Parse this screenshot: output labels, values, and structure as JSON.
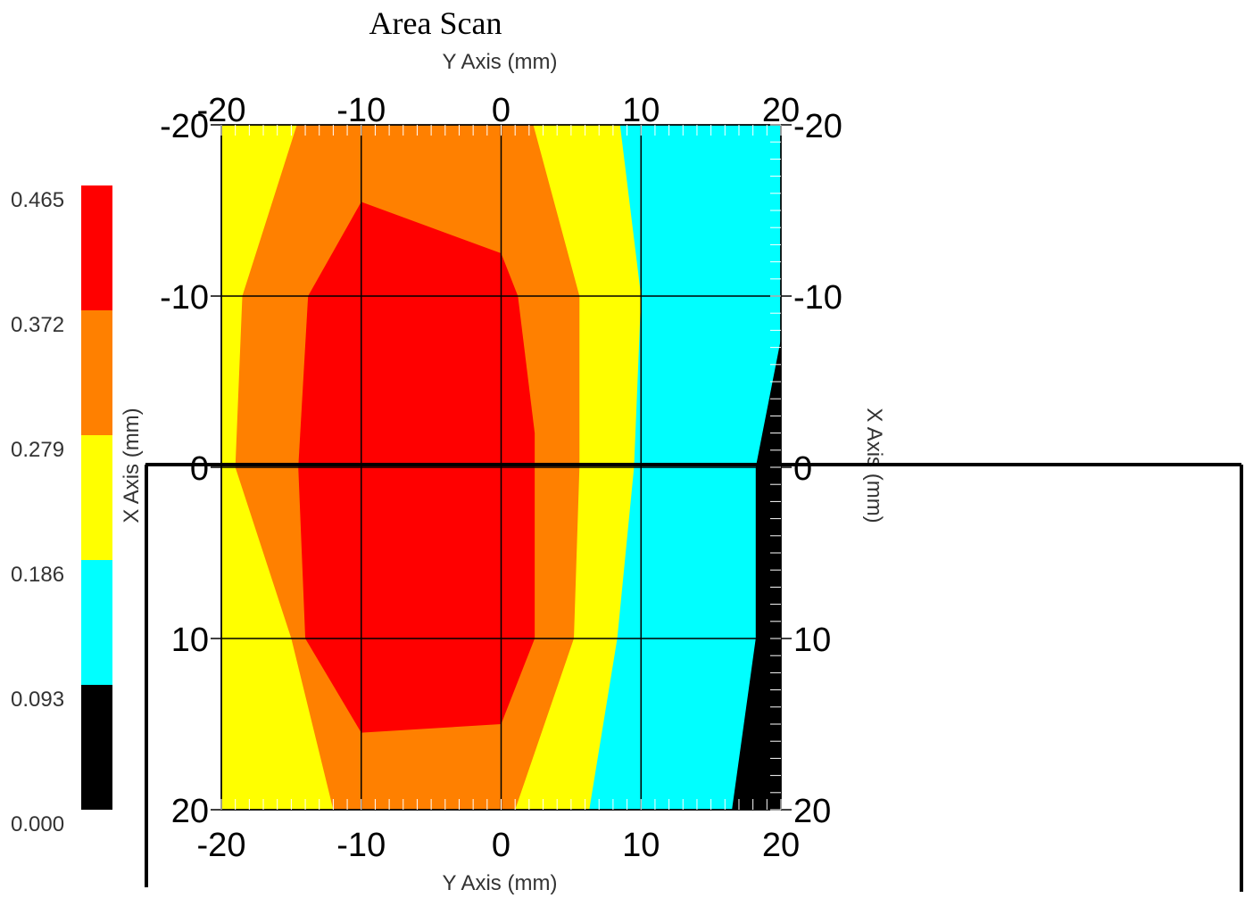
{
  "chart_data": {
    "type": "heatmap",
    "title": "Area Scan",
    "xlabel": "Y Axis (mm)",
    "ylabel": "X Axis (mm)",
    "x_range": [
      -20,
      20
    ],
    "y_range": [
      -20,
      20
    ],
    "x_ticks": [
      "-20",
      "-10",
      "0",
      "10",
      "20"
    ],
    "y_ticks": [
      "-20",
      "-10",
      "0",
      "10",
      "20"
    ],
    "grid": true,
    "legend_placement": "left",
    "legend": {
      "levels": [
        "0.465",
        "0.372",
        "0.279",
        "0.186",
        "0.093",
        "0.000"
      ],
      "colors": [
        "#ff0000",
        "#ff8000",
        "#ffff00",
        "#00ffff",
        "#000000"
      ]
    },
    "regions": [
      {
        "level": "0.372-0.465",
        "color": "#ff0000",
        "points": [
          [
            -10,
            -15.5
          ],
          [
            0,
            -12.5
          ],
          [
            1.2,
            -10
          ],
          [
            2.4,
            -2
          ],
          [
            2.4,
            10
          ],
          [
            0,
            15
          ],
          [
            -10,
            15.5
          ],
          [
            -14,
            10
          ],
          [
            -14.5,
            0
          ],
          [
            -13.8,
            -10
          ]
        ]
      },
      {
        "level": "0.279-0.372",
        "color": "#ff8000",
        "points": [
          [
            -14.6,
            -20
          ],
          [
            2.3,
            -20
          ],
          [
            5.6,
            -10
          ],
          [
            5.6,
            0
          ],
          [
            5.2,
            10
          ],
          [
            1,
            20
          ],
          [
            -12,
            20
          ],
          [
            -15,
            10
          ],
          [
            -19,
            0
          ],
          [
            -18.5,
            -10
          ]
        ]
      },
      {
        "level": "0.186-0.279",
        "color": "#ffff00",
        "points": [
          [
            -20,
            -20
          ],
          [
            8.5,
            -20
          ],
          [
            10,
            -10
          ],
          [
            9.5,
            0
          ],
          [
            8.3,
            10
          ],
          [
            6.3,
            20
          ],
          [
            -20,
            20
          ]
        ]
      },
      {
        "level": "0.093-0.186",
        "color": "#00ffff",
        "points": [
          [
            -20,
            -20
          ],
          [
            20,
            -20
          ],
          [
            20,
            20
          ],
          [
            -20,
            20
          ]
        ]
      },
      {
        "level": "0.000-0.093",
        "color": "#000000",
        "points": [
          [
            20,
            -7.5
          ],
          [
            18.2,
            0
          ],
          [
            18.2,
            10
          ],
          [
            16.5,
            20
          ],
          [
            20,
            20
          ]
        ]
      }
    ]
  }
}
